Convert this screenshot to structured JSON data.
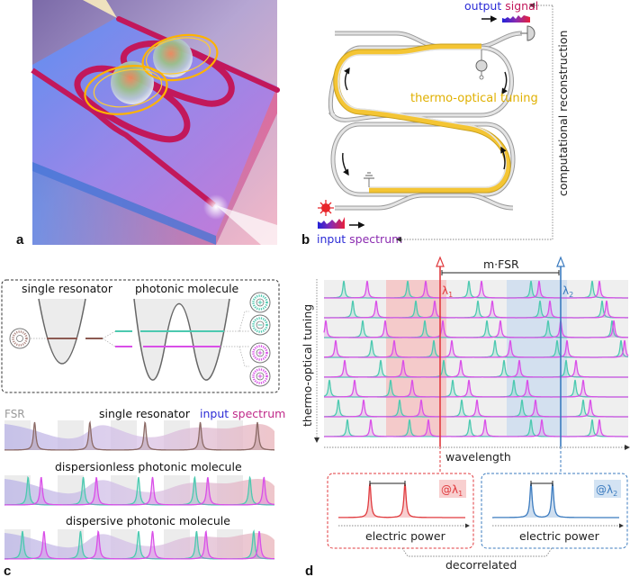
{
  "panel_a": {
    "letter": "a",
    "description": "3D rendering of photonic molecule chip: two coupled racetrack ring resonators (magenta) on blue substrate with bus waveguides, two glowing spheres with orange field loops, light beams at input/output edges"
  },
  "panel_b": {
    "letter": "b",
    "output_label_part1": "output",
    "output_label_part2": "signal",
    "input_label_part1": "input",
    "input_label_part2": "spectrum",
    "heater_label": "thermo-optical tuning",
    "side_label": "computational reconstruction",
    "colors": {
      "heater": "#f2c12e",
      "waveguide": "#d8d8d8",
      "waveguide_edge": "#9a9a9a",
      "laser": "#e8262b",
      "blue": "#2b2bd6",
      "purple": "#8b2bb0",
      "red": "#e0203a"
    }
  },
  "panel_c": {
    "letter": "c",
    "inset": {
      "title_left": "single resonator",
      "title_right": "photonic molecule"
    },
    "fsr_label": "FSR",
    "row_titles": [
      "single resonator",
      "dispersionless photonic molecule",
      "dispersive photonic molecule"
    ],
    "input_label_part1": "input",
    "input_label_part2": "spectrum",
    "colors": {
      "single": "#8c6a66",
      "teal": "#4cc9b0",
      "magenta": "#d94fe8"
    },
    "peaks": {
      "single": [
        37,
        96,
        155,
        214,
        275
      ],
      "dispersionless_teal": [
        30,
        89,
        148,
        208,
        267
      ],
      "dispersionless_magenta": [
        44,
        103,
        163,
        222,
        282
      ],
      "dispersive_teal": [
        24,
        86,
        148,
        210,
        271
      ],
      "dispersive_magenta": [
        47,
        105,
        163,
        220,
        277
      ]
    }
  },
  "panel_d": {
    "letter": "d",
    "y_axis_label": "thermo-optical tuning",
    "x_axis_label": "wavelength",
    "mfsr_label": "m·FSR",
    "lambda1_label": "λ",
    "lambda1_sub": "1",
    "lambda2_label": "λ",
    "lambda2_sub": "2",
    "at_lambda1": "@λ",
    "at_lambda2": "@λ",
    "box1_axis": "electric power",
    "box2_axis": "electric power",
    "decorrelated_label": "decorrelated",
    "colors": {
      "lambda1": "#e03a3e",
      "lambda2": "#3b7bbf",
      "teal": "#4cc9b0",
      "magenta": "#d94fe8"
    },
    "rows": [
      {
        "teal": [
          382,
          453,
          521,
          590,
          658
        ],
        "magenta": [
          408,
          473,
          535,
          599,
          666
        ]
      },
      {
        "teal": [
          392,
          462,
          531,
          600,
          669
        ],
        "magenta": [
          418,
          483,
          547,
          611,
          674
        ]
      },
      {
        "teal": [
          403,
          472,
          541,
          609,
          680
        ],
        "magenta": [
          362,
          428,
          492,
          556,
          623,
          682
        ]
      },
      {
        "teal": [
          413,
          482,
          550,
          619,
          690
        ],
        "magenta": [
          373,
          438,
          502,
          567,
          630,
          694
        ]
      },
      {
        "teal": [
          423,
          493,
          560,
          629
        ],
        "magenta": [
          383,
          448,
          512,
          577,
          640
        ]
      },
      {
        "teal": [
          366,
          434,
          503,
          571,
          639
        ],
        "magenta": [
          394,
          458,
          521,
          586,
          648
        ]
      },
      {
        "teal": [
          376,
          444,
          513,
          580,
          648
        ],
        "magenta": [
          404,
          468,
          530,
          595,
          656
        ]
      },
      {
        "teal": [
          386,
          455,
          522,
          590,
          658
        ],
        "magenta": [
          412,
          476,
          539,
          602,
          666
        ]
      }
    ]
  }
}
